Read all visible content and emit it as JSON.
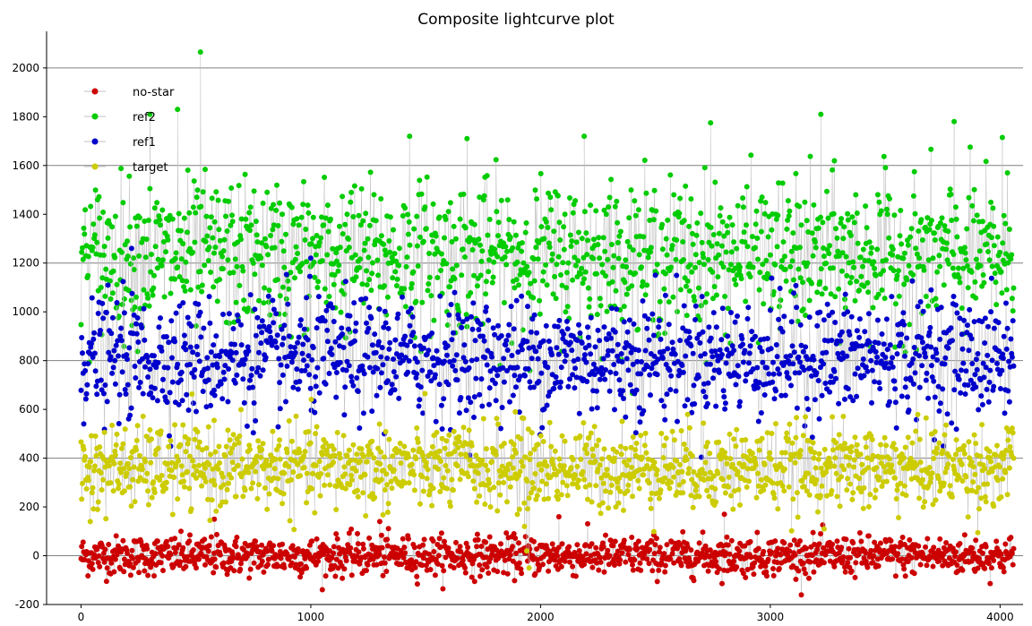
{
  "chart_data": {
    "type": "scatter",
    "title": "Composite lightcurve plot",
    "xlabel": "",
    "ylabel": "",
    "xlim": [
      -150,
      4100
    ],
    "ylim": [
      -200,
      2150
    ],
    "x_ticks": [
      0,
      1000,
      2000,
      3000,
      4000
    ],
    "y_ticks": [
      -200,
      0,
      200,
      400,
      600,
      800,
      1000,
      1200,
      1400,
      1600,
      1800,
      2000
    ],
    "grid": "horizontal-major",
    "legend_placement": "top-left",
    "connecting_line_color": "#c0c0c0",
    "n_points": 4060,
    "series": [
      {
        "name": "no-star",
        "color": "#cc0000",
        "center": 0,
        "spread": 40,
        "peaks": [
          [
            1300,
            140
          ],
          [
            2080,
            160
          ],
          [
            2800,
            170
          ],
          [
            580,
            150
          ]
        ]
      },
      {
        "name": "ref2",
        "color": "#00cc00",
        "center": 1230,
        "spread": 150,
        "peaks": [
          [
            520,
            2065
          ],
          [
            420,
            1830
          ],
          [
            3220,
            1810
          ],
          [
            3800,
            1780
          ],
          [
            2740,
            1775
          ],
          [
            1430,
            1720
          ],
          [
            1680,
            1710
          ],
          [
            2190,
            1720
          ],
          [
            4010,
            1715
          ],
          [
            300,
            1810
          ]
        ]
      },
      {
        "name": "ref1",
        "color": "#0000cc",
        "center": 810,
        "spread": 120,
        "peaks": [
          [
            220,
            1260
          ],
          [
            1000,
            1220
          ],
          [
            2500,
            1150
          ],
          [
            3700,
            1090
          ]
        ]
      },
      {
        "name": "target",
        "color": "#cccc00",
        "center": 360,
        "spread": 85,
        "peaks": [
          [
            1930,
            120
          ],
          [
            1940,
            20
          ],
          [
            1950,
            -50
          ],
          [
            40,
            140
          ],
          [
            1890,
            590
          ]
        ]
      }
    ]
  }
}
